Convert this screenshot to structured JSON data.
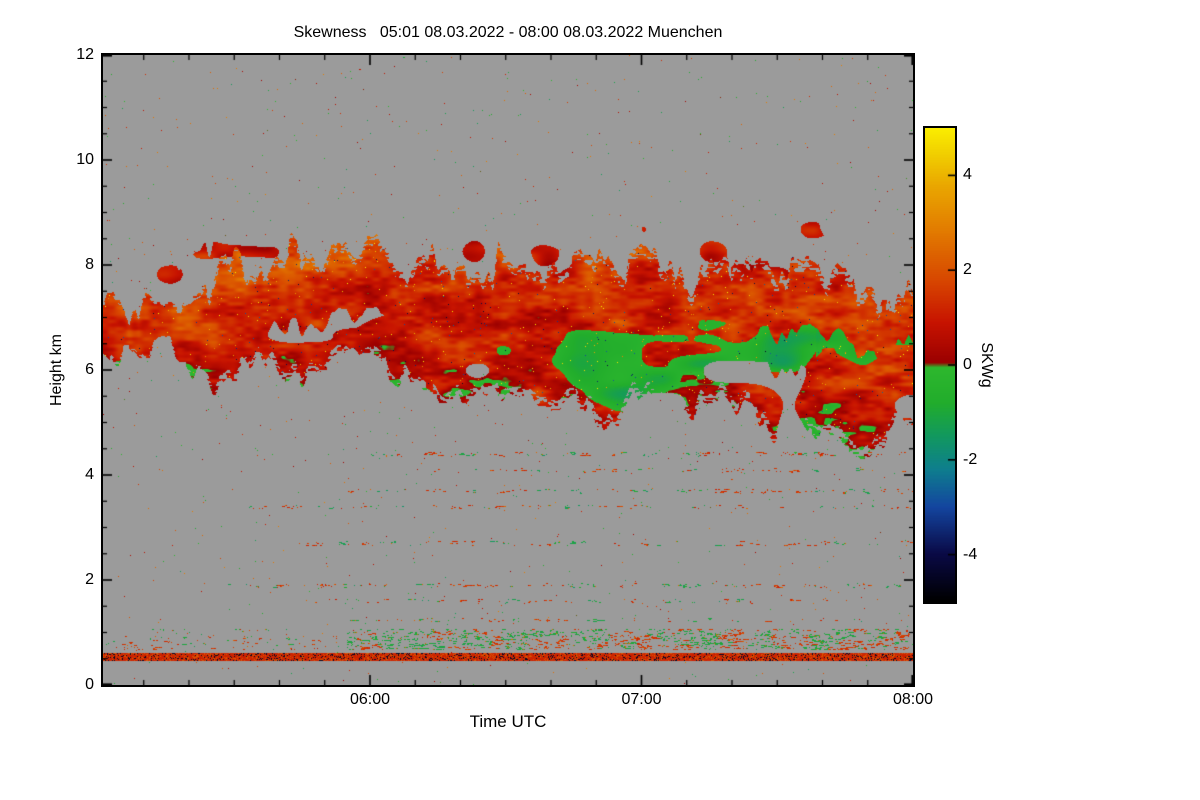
{
  "chart_data": {
    "type": "heatmap",
    "title": "Skewness   05:01 08.03.2022 - 08:00 08.03.2022 Muenchen",
    "xlabel": "Time UTC",
    "ylabel": "Height km",
    "site": "Muenchen",
    "time_start_utc": "05:01 08.03.2022",
    "time_end_utc": "08:00 08.03.2022",
    "x_start_min": 301,
    "x_end_min": 480,
    "x_ticks": [
      {
        "label": "06:00",
        "min": 360
      },
      {
        "label": "07:00",
        "min": 420
      },
      {
        "label": "08:00",
        "min": 480
      }
    ],
    "x_minor_step_min": 10,
    "ylim": [
      0,
      12
    ],
    "y_ticks": [
      0,
      2,
      4,
      6,
      8,
      10,
      12
    ],
    "y_minor_step": 0.5,
    "no_data_color": "#9b9b9b",
    "colorbar": {
      "label": "SKWg",
      "range": [
        -5,
        5
      ],
      "ticks": [
        4,
        2,
        0,
        -2,
        -4
      ],
      "stops": [
        {
          "v": -5.0,
          "c": "#000000"
        },
        {
          "v": -4.0,
          "c": "#0a0a46"
        },
        {
          "v": -3.0,
          "c": "#1446a0"
        },
        {
          "v": -2.2,
          "c": "#0e7f8e"
        },
        {
          "v": -1.5,
          "c": "#12995f"
        },
        {
          "v": -0.8,
          "c": "#22ad2c"
        },
        {
          "v": -0.05,
          "c": "#2eb82e"
        },
        {
          "v": 0.05,
          "c": "#9b0000"
        },
        {
          "v": 0.9,
          "c": "#c81400"
        },
        {
          "v": 1.8,
          "c": "#d84800"
        },
        {
          "v": 2.8,
          "c": "#e27a00"
        },
        {
          "v": 3.8,
          "c": "#eaa800"
        },
        {
          "v": 4.5,
          "c": "#f2d200"
        },
        {
          "v": 5.0,
          "c": "#fbee00"
        }
      ]
    },
    "features": {
      "cloud_band": {
        "t": [
          0.0,
          0.08,
          0.16,
          0.24,
          0.33,
          0.42,
          0.5,
          0.59,
          0.67,
          0.76,
          0.85,
          0.93,
          1.0
        ],
        "top_km": [
          7.4,
          7.4,
          7.9,
          8.3,
          8.3,
          8.0,
          8.05,
          8.1,
          8.0,
          7.95,
          7.85,
          7.6,
          7.45
        ],
        "base_km": [
          6.35,
          6.3,
          5.9,
          6.0,
          5.9,
          5.45,
          5.2,
          5.3,
          5.15,
          5.25,
          4.9,
          4.7,
          4.7
        ],
        "skwg_base": 0.55,
        "skwg_slope_with_height": 1.0,
        "negative_patch_min_skwg": -1.6
      },
      "surface_line": {
        "bottom_km": 0.46,
        "top_km": 0.62,
        "typical_skwg": 1.0,
        "dark_speck_fraction": 0.14
      },
      "aerosol_zone": {
        "bottom_km": 0.68,
        "top_km": 1.08
      },
      "speckle_layers": [
        {
          "km": 4.4,
          "t0": 0.33,
          "t1": 1.0,
          "thresh": 0.46
        },
        {
          "km": 4.1,
          "t0": 0.4,
          "t1": 1.0,
          "thresh": 0.5
        },
        {
          "km": 3.7,
          "t0": 0.3,
          "t1": 1.0,
          "thresh": 0.47
        },
        {
          "km": 3.4,
          "t0": 0.18,
          "t1": 1.0,
          "thresh": 0.44
        },
        {
          "km": 2.7,
          "t0": 0.25,
          "t1": 1.0,
          "thresh": 0.46
        },
        {
          "km": 1.9,
          "t0": 0.15,
          "t1": 1.0,
          "thresh": 0.44
        },
        {
          "km": 1.6,
          "t0": 0.25,
          "t1": 0.92,
          "thresh": 0.5
        },
        {
          "km": 1.25,
          "t0": 0.3,
          "t1": 0.95,
          "thresh": 0.5
        }
      ],
      "background_speck_density": 0.002
    }
  }
}
